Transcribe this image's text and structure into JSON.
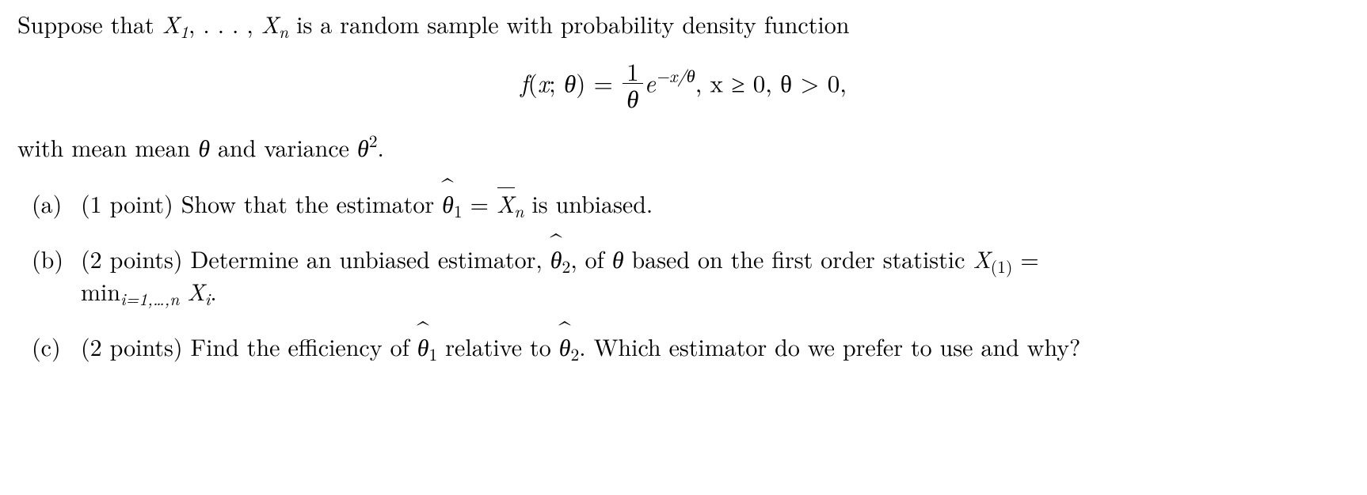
{
  "intro_prefix": "Suppose that ",
  "intro_sample": "X",
  "intro_sub1": "1",
  "intro_dots": ", . . . , ",
  "intro_subn": "n",
  "intro_suffix": " is a random sample with probability density function",
  "eq": {
    "lhs_f": "f",
    "lhs_open": "(",
    "lhs_x": "x",
    "lhs_sep": "; ",
    "lhs_theta": "θ",
    "lhs_close": ") = ",
    "num": "1",
    "den": "θ",
    "e": "e",
    "exp_minus_x": "−x/θ",
    "cond1": ",    x ≥ 0,    θ > 0,"
  },
  "after_eq_prefix": "with mean mean ",
  "after_eq_theta": "θ",
  "after_eq_mid": " and variance ",
  "after_eq_theta2": "θ",
  "after_eq_sq": "2",
  "after_eq_period": ".",
  "parts": {
    "a": {
      "marker": "(a)",
      "points": "(1 point) ",
      "t1": "Show that the estimator ",
      "theta": "θ",
      "hat_sub": "1",
      "eq": " = ",
      "xbar": "X",
      "xbar_sub": "n",
      "t2": " is unbiased."
    },
    "b": {
      "marker": "(b)",
      "points": "(2 points) ",
      "t1": "Determine an unbiased estimator, ",
      "theta": "θ",
      "hat_sub": "2",
      "t2": ", of ",
      "theta_plain": "θ",
      "t3": " based on the first order statistic ",
      "X": "X",
      "ord_sub": "(1)",
      "eq_end": " =",
      "line2_min": "min",
      "line2_minsub": "i=1,…,n",
      "line2_sp": " ",
      "line2_X": "X",
      "line2_Xsub": "i",
      "line2_period": "."
    },
    "c": {
      "marker": "(c)",
      "points": "(2 points) ",
      "t1": "Find the efficiency of ",
      "theta1": "θ",
      "hat1_sub": "1",
      "t2": " relative to ",
      "theta2": "θ",
      "hat2_sub": "2",
      "t3": ". Which estimator do we prefer to use and why?"
    }
  }
}
